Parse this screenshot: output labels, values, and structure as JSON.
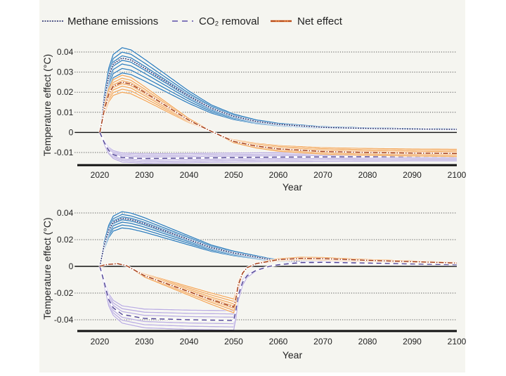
{
  "legend": {
    "items": [
      {
        "label": "Methane emissions",
        "style": "dotted",
        "color": "#1c2566"
      },
      {
        "label": "CO₂ removal",
        "style": "dashed",
        "color": "#5b4fa8"
      },
      {
        "label": "Net effect",
        "style": "dash-dot",
        "color": "#b4441a"
      }
    ],
    "placement": "top"
  },
  "colors": {
    "methane_band": "#2f7dba",
    "methane_center": "#1c2566",
    "co2_band": "#b9acdf",
    "co2_center": "#4b3e92",
    "net_band": "#f2a75a",
    "net_center": "#a0350f",
    "background": "#f5f5f0"
  },
  "chart_data": [
    {
      "type": "line",
      "xlabel": "Year",
      "ylabel": "Temperature effect (°C)",
      "xlim": [
        2015,
        2100
      ],
      "ylim": [
        -0.015,
        0.045
      ],
      "grid": "horizontal dotted",
      "xticks": [
        "2020",
        "2030",
        "2040",
        "2050",
        "2060",
        "2070",
        "2080",
        "2090",
        "2100"
      ],
      "yticks": [
        "0.04",
        "0.03",
        "0.02",
        "0.01",
        "0",
        "-0.01"
      ],
      "ytick_values": [
        0.04,
        0.03,
        0.02,
        0.01,
        0,
        -0.01
      ],
      "series": [
        {
          "name": "Methane emissions",
          "key": "methane",
          "x": [
            2020,
            2021,
            2022,
            2023,
            2025,
            2027,
            2030,
            2035,
            2040,
            2045,
            2050,
            2055,
            2060,
            2070,
            2080,
            2090,
            2100
          ],
          "y": [
            0,
            0.016,
            0.028,
            0.034,
            0.037,
            0.036,
            0.032,
            0.025,
            0.018,
            0.012,
            0.008,
            0.0055,
            0.004,
            0.0025,
            0.002,
            0.0017,
            0.0015
          ]
        },
        {
          "name": "CO₂ removal",
          "key": "co2",
          "x": [
            2020,
            2021,
            2022,
            2023,
            2025,
            2030,
            2040,
            2050,
            2060,
            2070,
            2080,
            2090,
            2100
          ],
          "y": [
            0,
            -0.005,
            -0.009,
            -0.011,
            -0.0125,
            -0.013,
            -0.0128,
            -0.0125,
            -0.0123,
            -0.0122,
            -0.0121,
            -0.012,
            -0.012
          ]
        },
        {
          "name": "Net effect",
          "key": "net",
          "x": [
            2020,
            2021,
            2022,
            2023,
            2025,
            2027,
            2030,
            2035,
            2040,
            2045,
            2050,
            2055,
            2060,
            2070,
            2080,
            2090,
            2100
          ],
          "y": [
            0,
            0.011,
            0.019,
            0.023,
            0.025,
            0.024,
            0.02,
            0.013,
            0.006,
            0.0005,
            -0.0045,
            -0.0068,
            -0.0082,
            -0.0095,
            -0.01,
            -0.0103,
            -0.0105
          ]
        }
      ]
    },
    {
      "type": "line",
      "xlabel": "Year",
      "ylabel": "Temperature effect (°C)",
      "xlim": [
        2015,
        2100
      ],
      "ylim": [
        -0.049,
        0.045
      ],
      "grid": "horizontal dotted",
      "xticks": [
        "2020",
        "2030",
        "2040",
        "2050",
        "2060",
        "2070",
        "2080",
        "2090",
        "2100"
      ],
      "yticks": [
        "0.04",
        "0.02",
        "0",
        "-0.02",
        "-0.04"
      ],
      "ytick_values": [
        0.04,
        0.02,
        0,
        -0.02,
        -0.04
      ],
      "series": [
        {
          "name": "Methane emissions",
          "key": "methane",
          "x": [
            2020,
            2021,
            2022,
            2023,
            2025,
            2027,
            2030,
            2035,
            2040,
            2045,
            2050,
            2055,
            2058,
            2060,
            2070,
            2080,
            2090,
            2100
          ],
          "y": [
            0,
            0.016,
            0.027,
            0.033,
            0.036,
            0.035,
            0.032,
            0.026,
            0.02,
            0.014,
            0.01,
            0.007,
            0.0052,
            0.0045,
            0.003,
            0.0022,
            0.0018,
            0.0015
          ]
        },
        {
          "name": "CO₂ removal",
          "key": "co2",
          "x": [
            2020,
            2021,
            2022,
            2023,
            2025,
            2030,
            2040,
            2050,
            2050.5,
            2051,
            2052,
            2053,
            2055,
            2058,
            2060,
            2065,
            2070,
            2080,
            2090,
            2100
          ],
          "y": [
            0,
            -0.012,
            -0.025,
            -0.031,
            -0.036,
            -0.039,
            -0.04,
            -0.0405,
            -0.033,
            -0.022,
            -0.012,
            -0.007,
            -0.003,
            0,
            0.0012,
            0.0028,
            0.003,
            0.0025,
            0.0018,
            0.0012
          ]
        },
        {
          "name": "Net effect",
          "key": "net",
          "x": [
            2020,
            2021,
            2022,
            2024,
            2026,
            2030,
            2035,
            2040,
            2045,
            2050,
            2050.5,
            2051,
            2052,
            2053,
            2055,
            2060,
            2065,
            2070,
            2080,
            2090,
            2100
          ],
          "y": [
            0,
            0.001,
            0.0015,
            0.002,
            0.0005,
            -0.007,
            -0.013,
            -0.019,
            -0.025,
            -0.0305,
            -0.024,
            -0.014,
            -0.005,
            -0.001,
            0.002,
            0.005,
            0.006,
            0.0058,
            0.0045,
            0.0035,
            0.0025
          ]
        }
      ]
    }
  ]
}
